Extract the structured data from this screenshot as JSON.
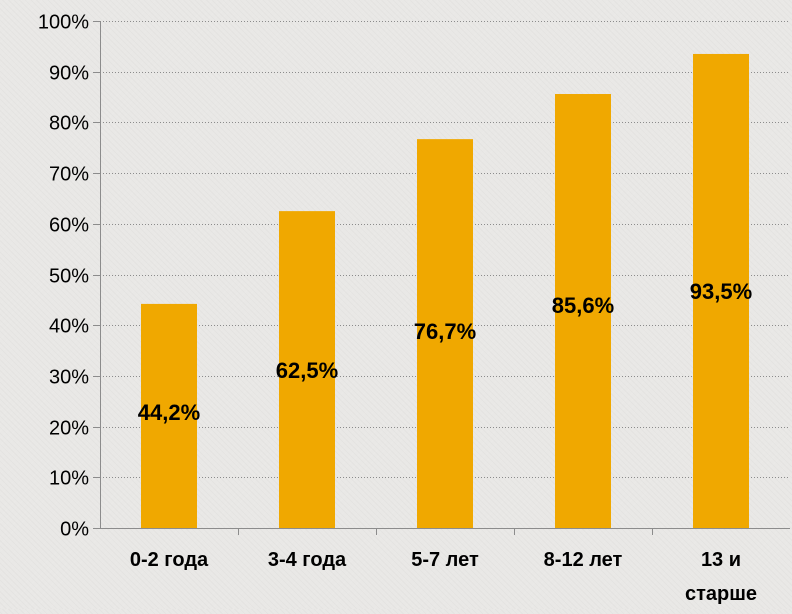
{
  "chart_data": {
    "type": "bar",
    "title": "",
    "xlabel": "",
    "ylabel": "",
    "categories": [
      "0-2 года",
      "3-4 года",
      "5-7 лет",
      "8-12 лет",
      "13 и старше"
    ],
    "category_lines": [
      [
        "0-2 года"
      ],
      [
        "3-4 года"
      ],
      [
        "5-7 лет"
      ],
      [
        "8-12 лет"
      ],
      [
        "13 и",
        "старше"
      ]
    ],
    "values": [
      44.2,
      62.5,
      76.7,
      85.6,
      93.5
    ],
    "value_labels": [
      "44,2%",
      "62,5%",
      "76,7%",
      "85,6%",
      "93,5%"
    ],
    "ylim": [
      0,
      100
    ],
    "yticks": [
      0,
      10,
      20,
      30,
      40,
      50,
      60,
      70,
      80,
      90,
      100
    ],
    "ytick_labels": [
      "0%",
      "10%",
      "20%",
      "30%",
      "40%",
      "50%",
      "60%",
      "70%",
      "80%",
      "90%",
      "100%"
    ],
    "grid": true,
    "legend": "none",
    "colors": {
      "bar": "#f0a800",
      "grid": "#8c8c8c",
      "text": "#000000"
    }
  }
}
